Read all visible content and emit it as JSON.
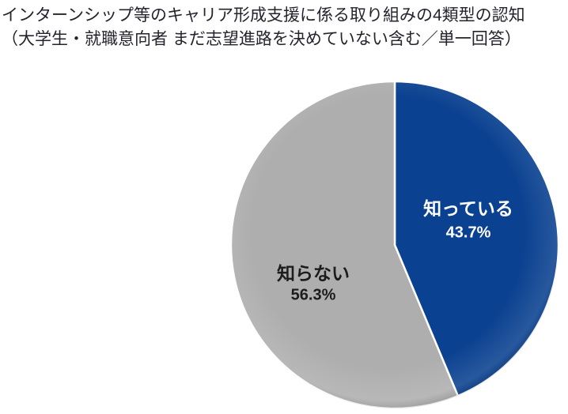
{
  "page": {
    "background": "#ffffff"
  },
  "title": {
    "line1": "インターンシップ等のキャリア形成支援に係る取り組みの4類型の認知",
    "line2": "（大学生・就職意向者 まだ志望進路を決めていない含む／単一回答）",
    "color": "#24242e"
  },
  "chart_data": {
    "type": "pie",
    "title": "インターンシップ等のキャリア形成支援に係る取り組みの4類型の認知（大学生・就職意向者 まだ志望進路を決めていない含む／単一回答）",
    "start_angle_deg": 0,
    "direction": "clockwise",
    "legend": "none",
    "labels_position": "inside",
    "separator_color": "#ffffff",
    "segments": [
      {
        "key": "know",
        "label": "知っている",
        "value": 43.7,
        "pct_label": "43.7%",
        "color": "#0a4190",
        "label_color": "#ffffff"
      },
      {
        "key": "dont-know",
        "label": "知らない",
        "value": 56.3,
        "pct_label": "56.3%",
        "color": "#aeaeae",
        "label_color": "#1c1c1c"
      }
    ]
  }
}
